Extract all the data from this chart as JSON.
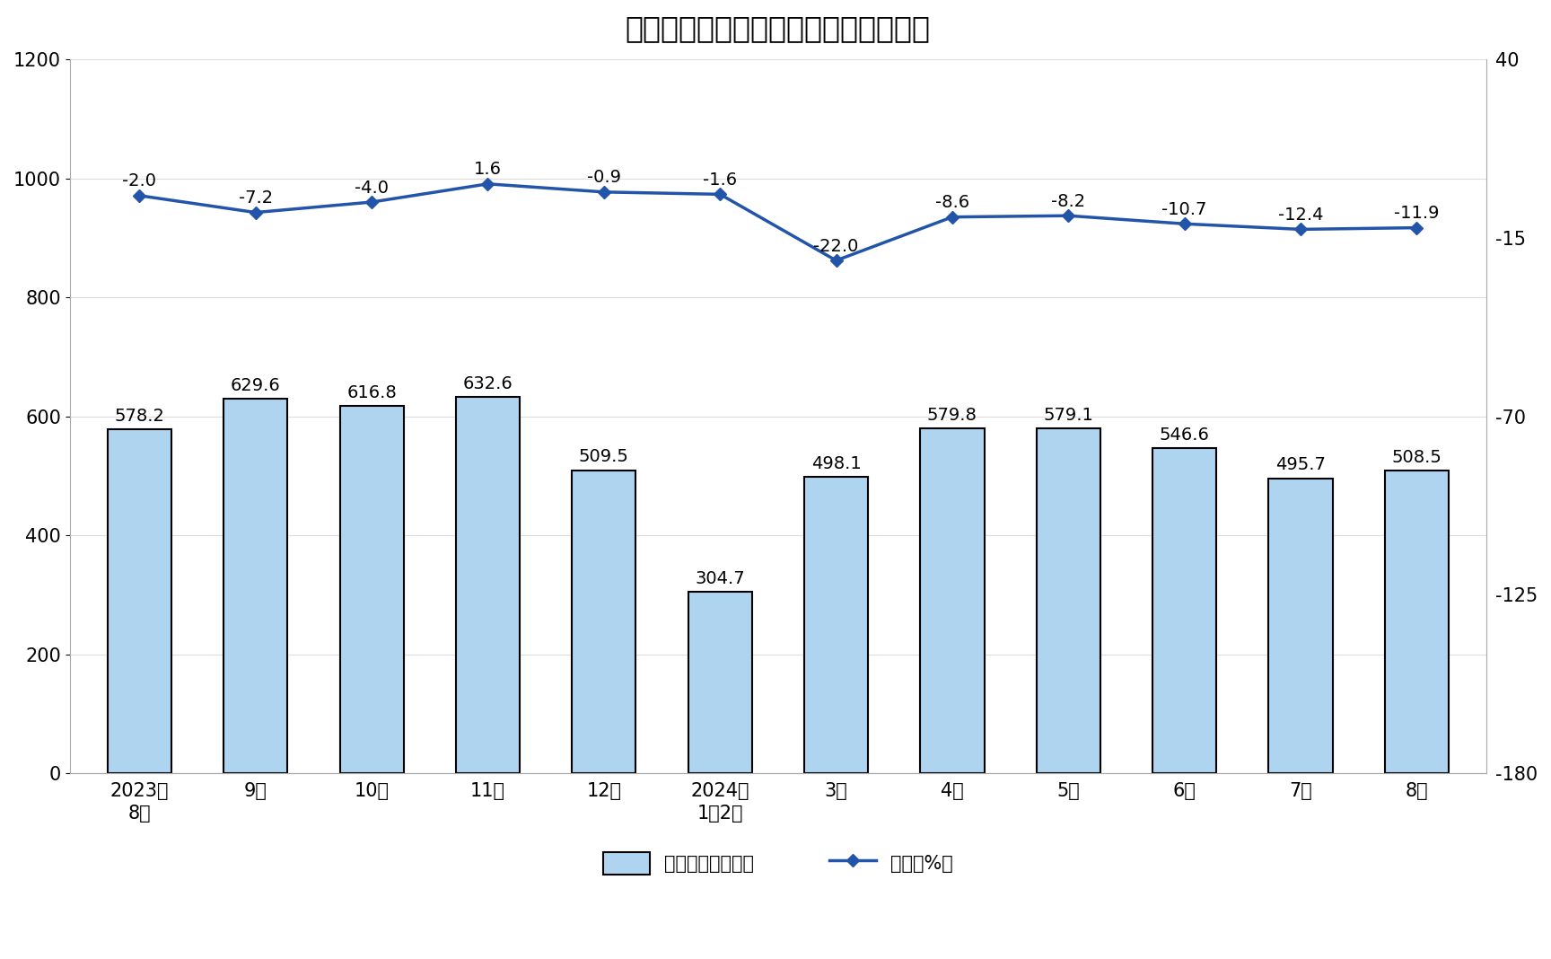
{
  "title": "规模以上工业水泥同比增速及日均产量",
  "categories": [
    "2023年\n8月",
    "9月",
    "10月",
    "11月",
    "12月",
    "2024年\n1－2月",
    "3月",
    "4月",
    "5月",
    "6月",
    "7月",
    "8月"
  ],
  "bar_values": [
    578.2,
    629.6,
    616.8,
    632.6,
    509.5,
    304.7,
    498.1,
    579.8,
    579.1,
    546.6,
    495.7,
    508.5
  ],
  "line_values": [
    -2.0,
    -7.2,
    -4.0,
    1.6,
    -0.9,
    -1.6,
    -22.0,
    -8.6,
    -8.2,
    -10.7,
    -12.4,
    -11.9
  ],
  "bar_color": "#aed4f0",
  "bar_edge_color": "#000000",
  "bar_edge_width": 1.5,
  "line_color": "#2255aa",
  "marker_color": "#2255aa",
  "marker_style": "D",
  "marker_size": 7,
  "left_ylim": [
    0,
    1200
  ],
  "left_yticks": [
    0,
    200,
    400,
    600,
    800,
    1000,
    1200
  ],
  "right_ylim": [
    -180,
    40
  ],
  "right_yticks": [
    -180,
    -125,
    -70,
    -15,
    40
  ],
  "legend_bar_label": "日均产量（万吨）",
  "legend_line_label": "增速（%）",
  "title_fontsize": 24,
  "tick_fontsize": 15,
  "annotation_fontsize": 14,
  "legend_fontsize": 15,
  "background_color": "#ffffff",
  "grid_color": "#dddddd",
  "annotation_color": "#000000"
}
